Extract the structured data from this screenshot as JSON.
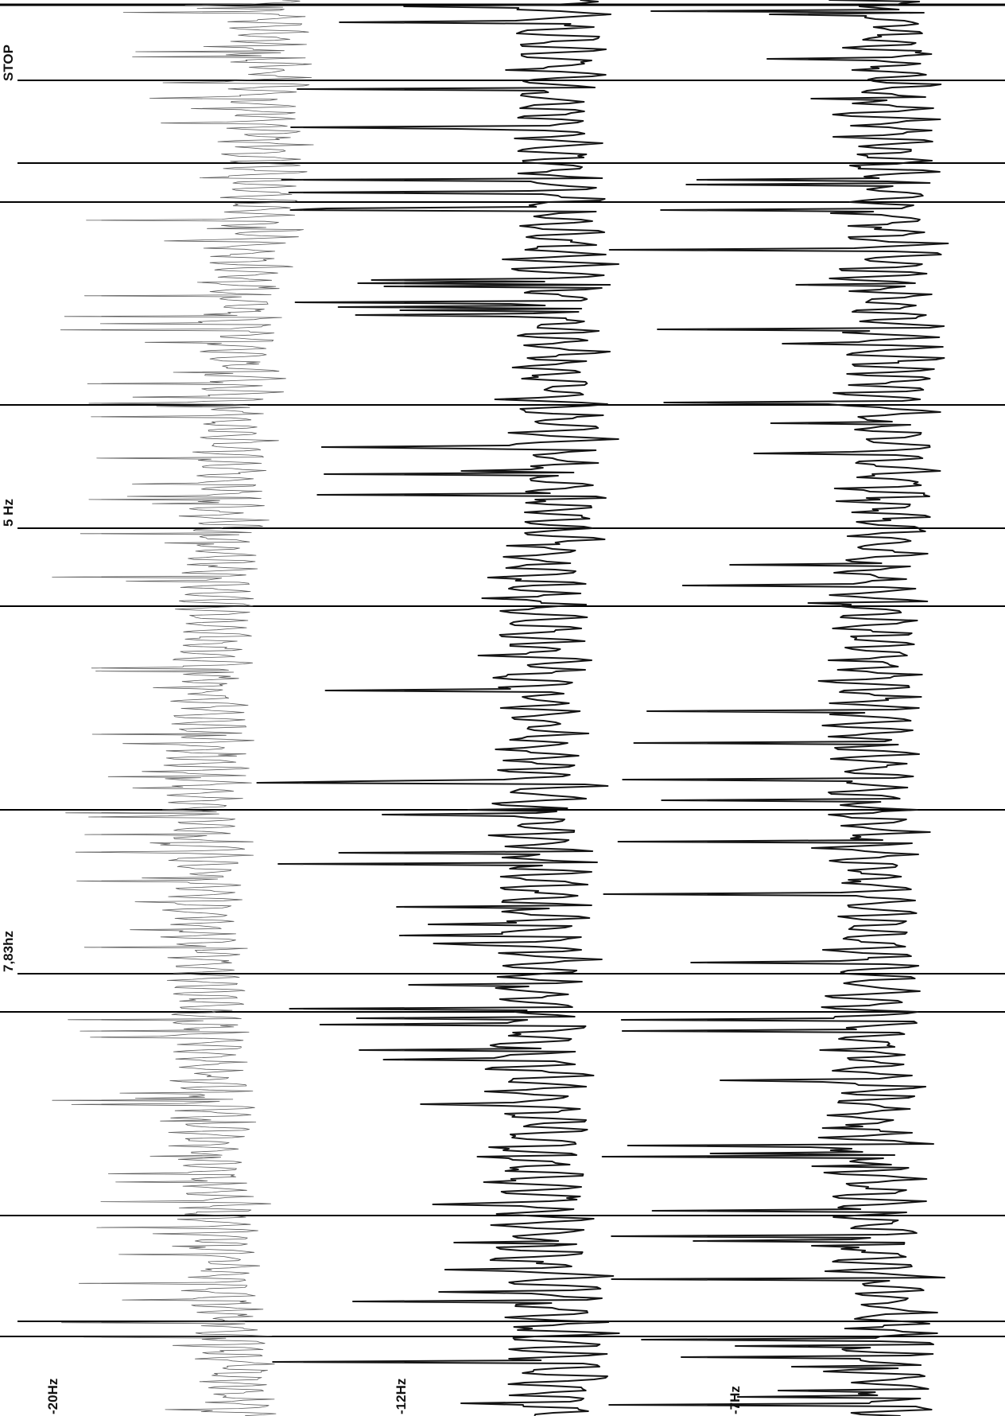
{
  "chart_data": {
    "type": "line",
    "title": "",
    "annotations": [
      "STOP",
      "5 Hz",
      "7,83hz"
    ],
    "channels": [
      {
        "label": "-20Hz",
        "style": "faint"
      },
      {
        "label": "-12Hz",
        "style": "bold"
      },
      {
        "label": "-7Hz",
        "style": "bold"
      }
    ],
    "grid": false,
    "colors": {
      "trace": "#141414",
      "faint_trace": "#5a5a5a",
      "marker": "#000000",
      "background": "#ffffff"
    }
  }
}
